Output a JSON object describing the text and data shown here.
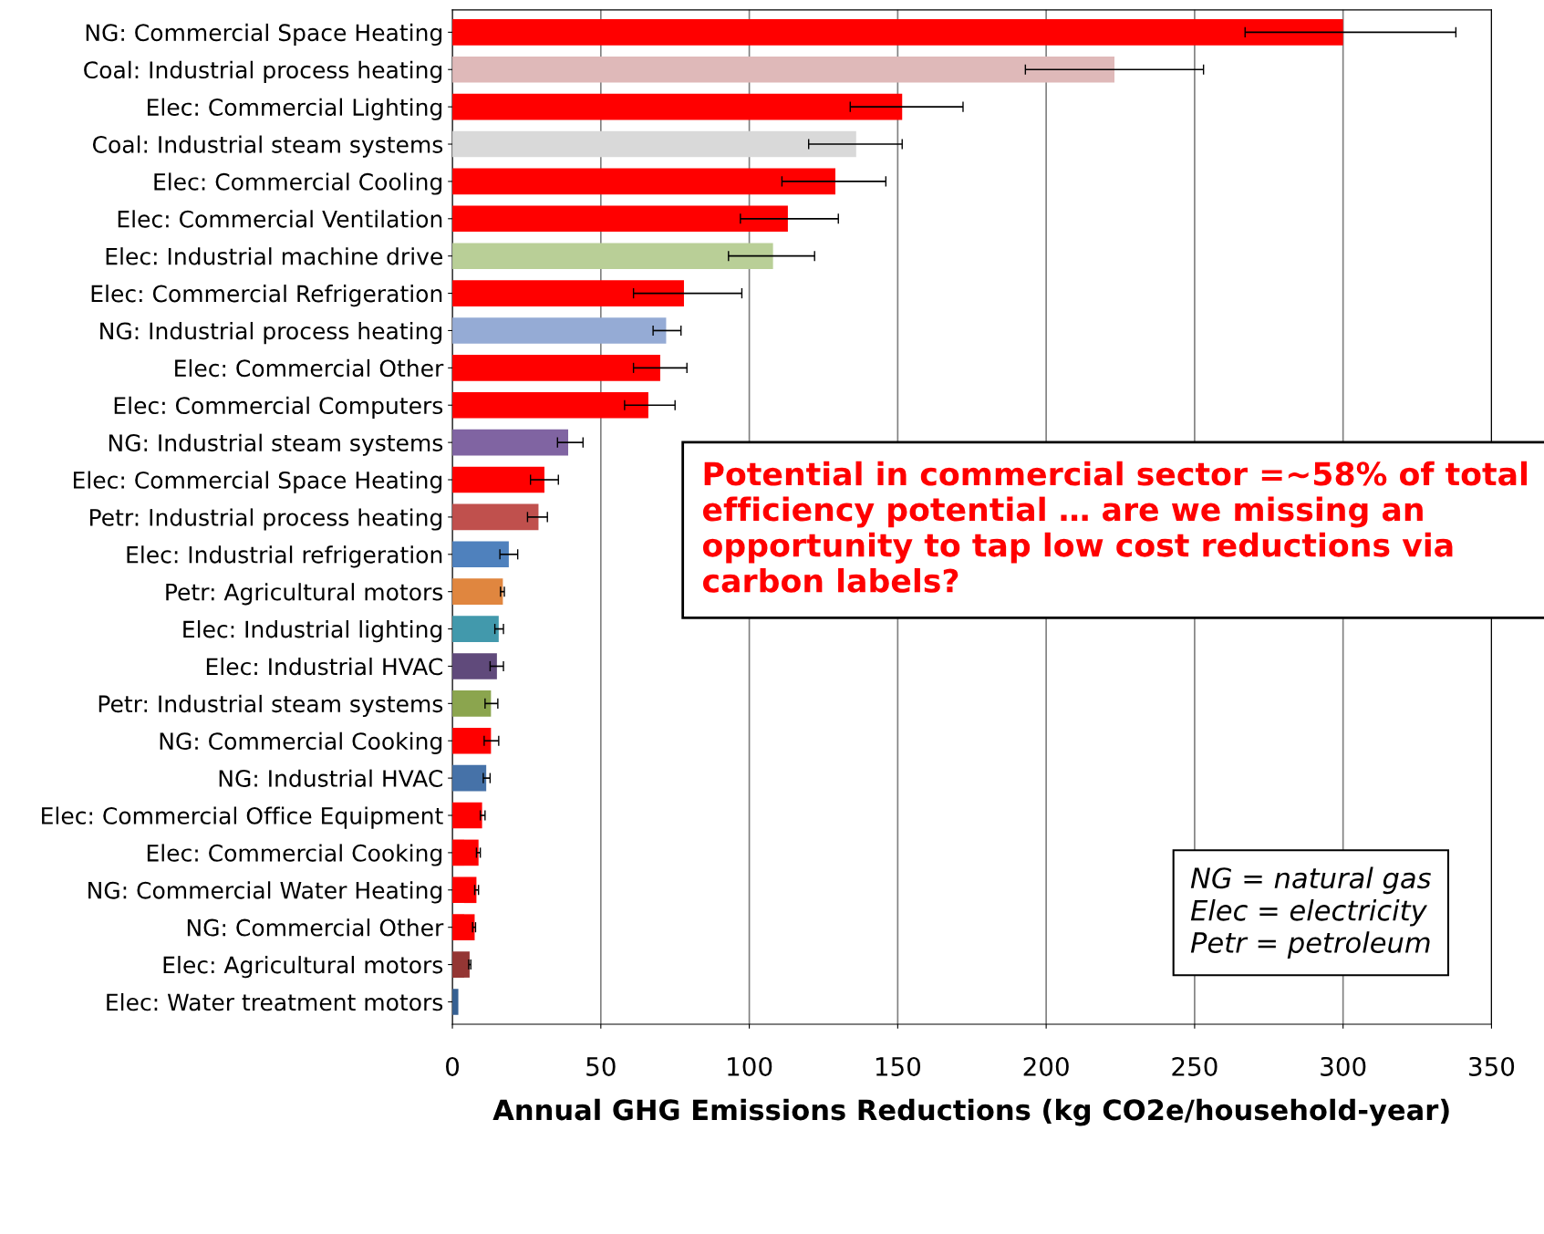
{
  "chart_data": {
    "type": "bar",
    "orientation": "horizontal",
    "xlabel": "Annual GHG Emissions Reductions (kg CO2e/household-year)",
    "categories": [
      "NG: Commercial Space Heating",
      "Coal: Industrial process heating",
      "Elec: Commercial Lighting",
      "Coal: Industrial steam systems",
      "Elec: Commercial Cooling",
      "Elec: Commercial Ventilation",
      "Elec: Industrial machine drive",
      "Elec: Commercial Refrigeration",
      "NG: Industrial process heating",
      "Elec: Commercial Other",
      "Elec: Commercial Computers",
      "NG: Industrial steam systems",
      "Elec: Commercial Space Heating",
      "Petr: Industrial process heating",
      "Elec: Industrial refrigeration",
      "Petr: Agricultural motors",
      "Elec: Industrial lighting",
      "Elec: Industrial HVAC",
      "Petr: Industrial steam systems",
      "NG: Commercial Cooking",
      "NG: Industrial HVAC",
      "Elec: Commercial Office Equipment",
      "Elec: Commercial Cooking",
      "NG: Commercial Water Heating",
      "NG: Commercial Other",
      "Elec: Agricultural motors",
      "Elec: Water treatment motors"
    ],
    "values": [
      300,
      223,
      151.5,
      136,
      129,
      113,
      108,
      78,
      72,
      70,
      66,
      39,
      31,
      29,
      19,
      17,
      15.6,
      15,
      13,
      13,
      11.4,
      10,
      8.8,
      8.1,
      7.5,
      5.8,
      2
    ],
    "errors": [
      [
        267,
        338
      ],
      [
        193,
        253
      ],
      [
        134,
        172
      ],
      [
        120,
        151.5
      ],
      [
        111,
        146
      ],
      [
        97,
        130
      ],
      [
        93,
        122
      ],
      [
        61,
        97.5
      ],
      [
        67.6,
        77
      ],
      [
        61,
        79
      ],
      [
        58,
        75
      ],
      [
        35.4,
        44
      ],
      [
        26.3,
        35.7
      ],
      [
        25.3,
        32
      ],
      [
        16,
        22
      ],
      [
        16.2,
        17.5
      ],
      [
        14.3,
        17.2
      ],
      [
        12.7,
        17.2
      ],
      [
        11,
        15.3
      ],
      [
        10.7,
        15.6
      ],
      [
        10.4,
        12.7
      ],
      [
        9.4,
        11
      ],
      [
        8.1,
        9.4
      ],
      [
        7.5,
        8.8
      ],
      [
        6.8,
        7.8
      ],
      [
        5.5,
        6.2
      ],
      null
    ],
    "colors": [
      "#ff0000",
      "#dfb9b9",
      "#ff0000",
      "#d9d9d9",
      "#ff0000",
      "#ff0000",
      "#b9cf97",
      "#ff0000",
      "#95abd5",
      "#ff0000",
      "#ff0000",
      "#8064a2",
      "#ff0000",
      "#c0504d",
      "#4f81bd",
      "#e0863f",
      "#4299ac",
      "#604a7b",
      "#8ba54e",
      "#ff0000",
      "#4672a8",
      "#ff0000",
      "#ff0000",
      "#ff0000",
      "#ff0000",
      "#943634",
      "#366092"
    ],
    "xlim": [
      0,
      350
    ],
    "xticks": [
      0,
      50,
      100,
      150,
      200,
      250,
      300,
      350
    ],
    "grid": "x",
    "annotations": [
      "Potential in commercial sector =~58% of total efficiency potential … are we missing an opportunity to tap low cost reductions via carbon labels?",
      "NG = natural gas\nElec = electricity\nPetr = petroleum"
    ]
  }
}
